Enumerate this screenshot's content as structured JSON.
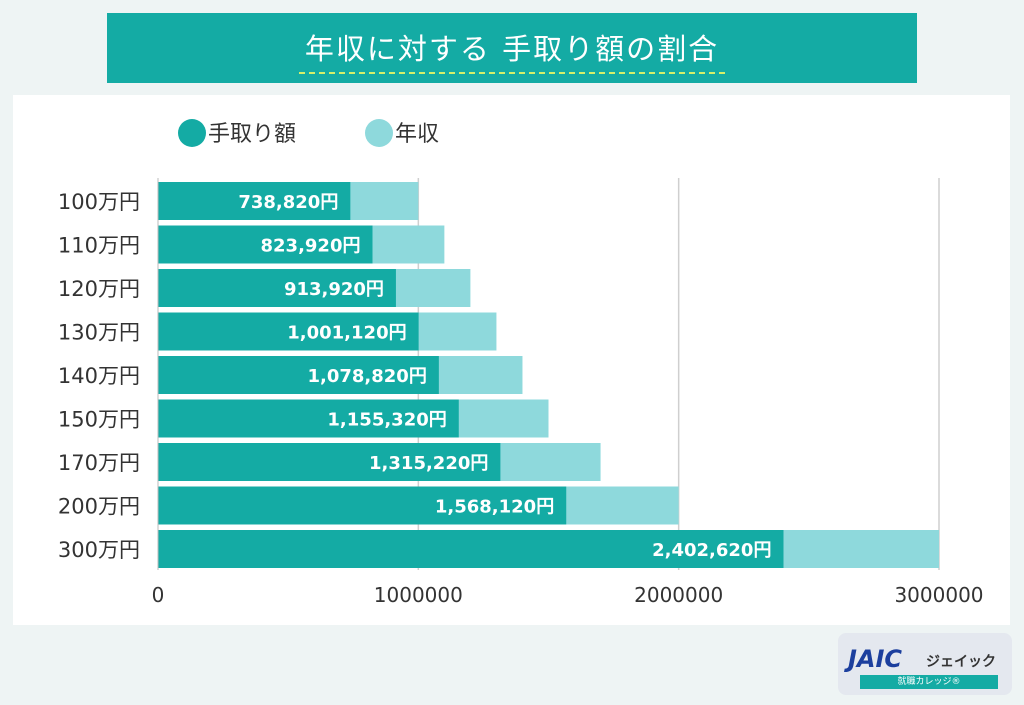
{
  "title": "年収に対する 手取り額の割合",
  "chart_data": {
    "type": "bar",
    "orientation": "horizontal",
    "stacked": "overlay",
    "categories": [
      "100万円",
      "110万円",
      "120万円",
      "130万円",
      "140万円",
      "150万円",
      "170万円",
      "200万円",
      "300万円"
    ],
    "series": [
      {
        "name": "手取り額",
        "color": "#14aba4",
        "values": [
          738820,
          823920,
          913920,
          1001120,
          1078820,
          1155320,
          1315220,
          1568120,
          2402620
        ],
        "labels": [
          "738,820円",
          "823,920円",
          "913,920円",
          "1,001,120円",
          "1,078,820円",
          "1,155,320円",
          "1,315,220円",
          "1,568,120円",
          "2,402,620円"
        ]
      },
      {
        "name": "年収",
        "color": "#8ed9dc",
        "values": [
          1000000,
          1100000,
          1200000,
          1300000,
          1400000,
          1500000,
          1700000,
          2000000,
          3000000
        ]
      }
    ],
    "xlim": [
      0,
      3000000
    ],
    "xticks": [
      "0",
      "1000000",
      "2000000",
      "3000000"
    ],
    "grid": true,
    "legend": "top-left"
  },
  "logo": {
    "brand": "JAIC",
    "kana": "ジェイック",
    "sub": "就職カレッジ®"
  }
}
